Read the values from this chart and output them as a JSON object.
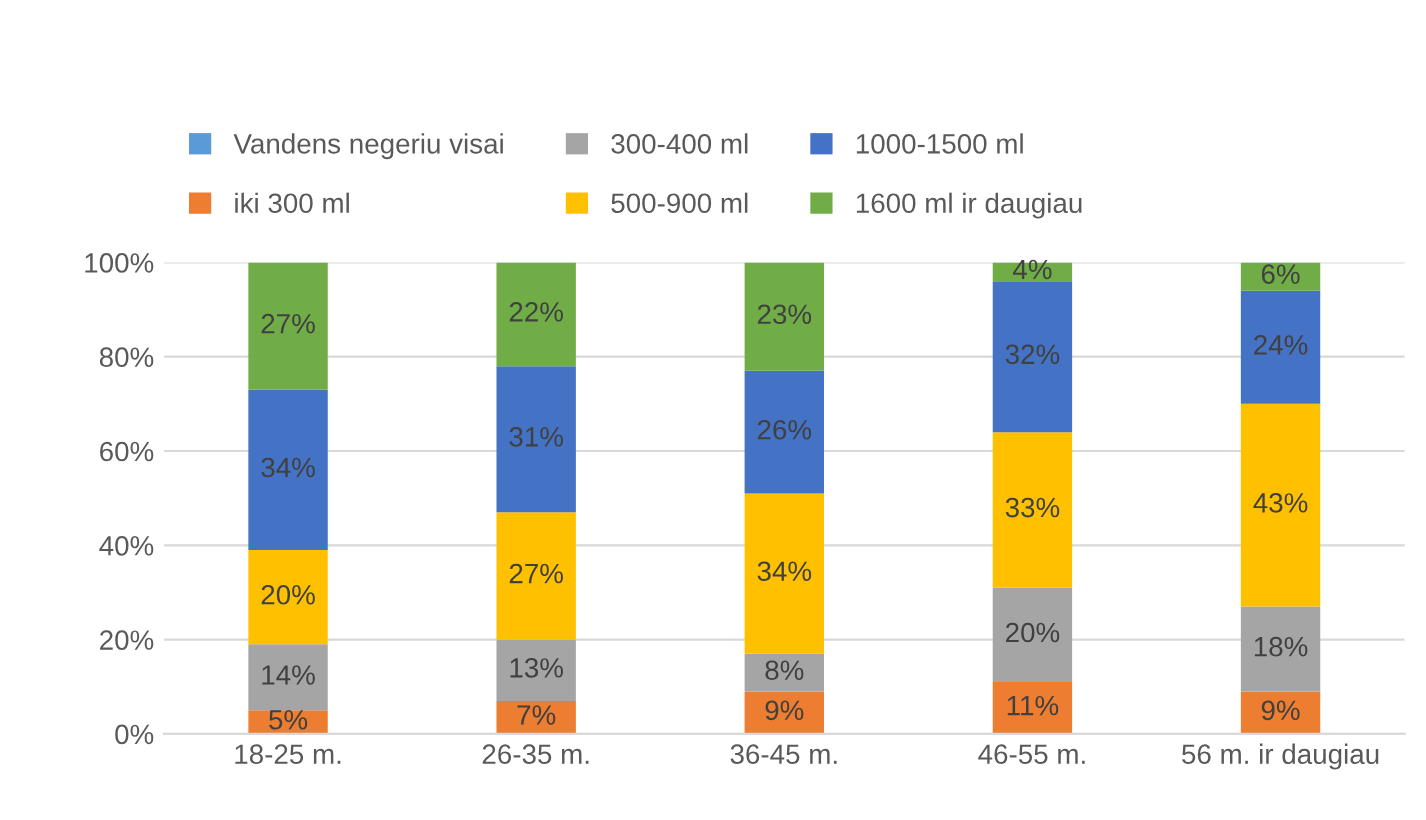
{
  "chart_data": {
    "type": "bar",
    "stacked": true,
    "categories": [
      "18-25 m.",
      "26-35 m.",
      "36-45 m.",
      "46-55 m.",
      "56 m. ir daugiau"
    ],
    "series": [
      {
        "name": "Vandens negeriu visai",
        "color": "#5b9bd5",
        "values": [
          0,
          0,
          0,
          0,
          0
        ],
        "value_labels": [
          null,
          null,
          null,
          null,
          null
        ]
      },
      {
        "name": "iki 300 ml",
        "color": "#ed7d31",
        "values": [
          5,
          7,
          9,
          11,
          9
        ],
        "value_labels": [
          "5%",
          "7%",
          "9%",
          "11%",
          "9%"
        ]
      },
      {
        "name": "300-400 ml",
        "color": "#a5a5a5",
        "values": [
          14,
          13,
          8,
          20,
          18
        ],
        "value_labels": [
          "14%",
          "13%",
          "8%",
          "20%",
          "18%"
        ]
      },
      {
        "name": "500-900 ml",
        "color": "#ffc000",
        "values": [
          20,
          27,
          34,
          33,
          43
        ],
        "value_labels": [
          "20%",
          "27%",
          "34%",
          "33%",
          "43%"
        ]
      },
      {
        "name": "1000-1500 ml",
        "color": "#4472c4",
        "values": [
          34,
          31,
          26,
          32,
          24
        ],
        "value_labels": [
          "34%",
          "31%",
          "26%",
          "32%",
          "24%"
        ]
      },
      {
        "name": "1600 ml ir daugiau",
        "color": "#70ad47",
        "values": [
          27,
          22,
          23,
          4,
          6
        ],
        "value_labels": [
          "27%",
          "22%",
          "23%",
          "4%",
          "6%"
        ]
      }
    ],
    "ylim": [
      0,
      100
    ],
    "yticks": [
      {
        "value": 0,
        "label": "0%"
      },
      {
        "value": 20,
        "label": "20%"
      },
      {
        "value": 40,
        "label": "40%"
      },
      {
        "value": 60,
        "label": "60%"
      },
      {
        "value": 80,
        "label": "80%"
      },
      {
        "value": 100,
        "label": "100%"
      }
    ],
    "grid": "y",
    "legend": "top"
  }
}
